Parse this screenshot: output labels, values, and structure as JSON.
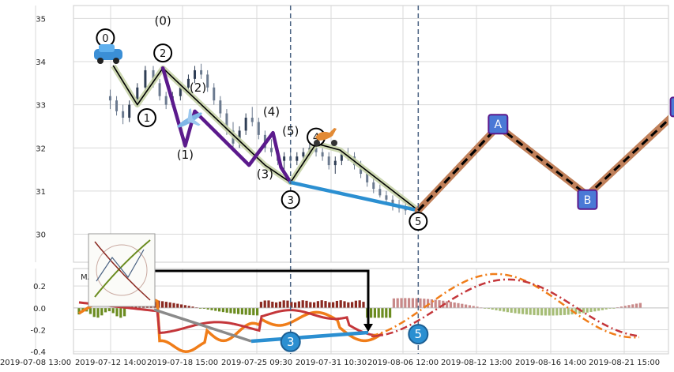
{
  "chart_data": [
    {
      "type": "candlestick",
      "panel": "price",
      "x_ticks": [
        "2019-07-08 13:00",
        "2019-07-12 14:00",
        "2019-07-18 15:00",
        "2019-07-25 09:30",
        "2019-07-31 10:30",
        "2019-08-06 12:00",
        "2019-08-12 13:00",
        "2019-08-16 14:00",
        "2019-08-21 15:00"
      ],
      "y_ticks": [
        30,
        31,
        32,
        33,
        34,
        35
      ],
      "ylim": [
        29.35,
        35.3
      ],
      "x_domain": [
        0,
        100
      ],
      "grid": true,
      "candles": [
        [
          2.3,
          33.2,
          33.35,
          32.9,
          33.1
        ],
        [
          2.7,
          33.1,
          33.2,
          32.75,
          32.85
        ],
        [
          3.1,
          32.85,
          33.0,
          32.55,
          32.7
        ],
        [
          3.5,
          32.7,
          33.1,
          32.6,
          33.0
        ],
        [
          4.0,
          33.0,
          33.5,
          32.95,
          33.4
        ],
        [
          4.5,
          33.4,
          33.9,
          33.3,
          33.8
        ],
        [
          5.0,
          33.8,
          33.9,
          33.4,
          33.5
        ],
        [
          5.4,
          33.5,
          33.6,
          33.1,
          33.2
        ],
        [
          5.8,
          33.2,
          33.3,
          32.9,
          33.0
        ],
        [
          6.2,
          33.0,
          33.3,
          32.95,
          33.2
        ],
        [
          6.7,
          33.2,
          33.5,
          33.1,
          33.4
        ],
        [
          7.2,
          33.4,
          33.7,
          33.3,
          33.6
        ],
        [
          7.6,
          33.6,
          33.9,
          33.5,
          33.8
        ],
        [
          8.0,
          33.8,
          33.95,
          33.6,
          33.7
        ],
        [
          8.4,
          33.7,
          33.8,
          33.3,
          33.4
        ],
        [
          8.8,
          33.4,
          33.5,
          33.0,
          33.1
        ],
        [
          9.2,
          33.1,
          33.2,
          32.7,
          32.8
        ],
        [
          9.6,
          32.8,
          32.9,
          32.3,
          32.4
        ],
        [
          10.0,
          32.4,
          32.6,
          32.0,
          32.1
        ],
        [
          10.4,
          32.1,
          32.5,
          32.0,
          32.4
        ],
        [
          10.8,
          32.4,
          32.8,
          32.3,
          32.7
        ],
        [
          11.2,
          32.7,
          32.95,
          32.5,
          32.6
        ],
        [
          11.6,
          32.6,
          32.7,
          32.2,
          32.3
        ],
        [
          12.0,
          32.3,
          32.4,
          31.9,
          32.0
        ],
        [
          12.4,
          32.0,
          32.2,
          31.8,
          31.9
        ],
        [
          12.8,
          31.9,
          32.0,
          31.6,
          31.7
        ],
        [
          13.2,
          31.7,
          31.9,
          31.5,
          31.8
        ],
        [
          13.6,
          31.8,
          32.0,
          31.6,
          31.7
        ],
        [
          14.0,
          31.7,
          31.9,
          31.6,
          31.8
        ],
        [
          14.4,
          31.8,
          32.0,
          31.7,
          31.9
        ],
        [
          14.8,
          31.9,
          32.1,
          31.8,
          32.0
        ],
        [
          15.2,
          32.0,
          32.1,
          31.8,
          31.9
        ],
        [
          15.6,
          31.9,
          32.0,
          31.7,
          31.8
        ],
        [
          16.0,
          31.8,
          31.9,
          31.5,
          31.6
        ],
        [
          16.4,
          31.6,
          31.8,
          31.4,
          31.7
        ],
        [
          16.8,
          31.7,
          31.9,
          31.6,
          31.85
        ],
        [
          17.2,
          31.85,
          32.0,
          31.7,
          31.8
        ],
        [
          17.6,
          31.8,
          31.9,
          31.5,
          31.6
        ],
        [
          18.0,
          31.6,
          31.7,
          31.3,
          31.4
        ],
        [
          18.4,
          31.4,
          31.5,
          31.1,
          31.2
        ],
        [
          18.8,
          31.2,
          31.3,
          30.95,
          31.05
        ],
        [
          19.2,
          31.05,
          31.15,
          30.85,
          30.9
        ],
        [
          19.6,
          30.9,
          31.0,
          30.7,
          30.8
        ],
        [
          20.0,
          30.8,
          30.9,
          30.55,
          30.65
        ],
        [
          20.4,
          30.65,
          30.8,
          30.5,
          30.6
        ],
        [
          20.8,
          30.6,
          30.75,
          30.45,
          30.55
        ]
      ],
      "volume_note": null
    },
    {
      "type": "line",
      "panel": "price",
      "series": [
        {
          "name": "",
          "role": "zigzag-black",
          "x": [
            2.5,
            4.0,
            5.6,
            12.0,
            13.6,
            15.2,
            16.7,
            21.6
          ],
          "y": [
            33.9,
            33.0,
            33.85,
            31.6,
            31.2,
            32.1,
            31.95,
            30.55
          ],
          "color": "#000000"
        },
        {
          "name": "",
          "role": "zigzag-purple",
          "x": [
            5.6,
            7.0,
            7.6,
            11.0,
            12.5,
            13.0,
            13.6
          ],
          "y": [
            33.85,
            32.05,
            32.85,
            31.6,
            32.35,
            31.55,
            31.2
          ],
          "color": "#5b1a8c"
        },
        {
          "name": "",
          "role": "blue-projection",
          "x": [
            13.6,
            21.6
          ],
          "y": [
            31.2,
            30.55
          ],
          "color": "#2b8fd1"
        },
        {
          "name": "",
          "role": "pink-leg",
          "x": [
            21.6,
            26.6
          ],
          "y": [
            30.55,
            32.5
          ],
          "color": "#f07878"
        },
        {
          "name": "",
          "role": "abc-projection",
          "x": [
            21.6,
            26.6,
            32.2,
            38.0
          ],
          "y": [
            30.55,
            32.5,
            30.9,
            32.9
          ],
          "color": "#c0805a"
        }
      ],
      "labels": [
        {
          "text": "0",
          "x": 2.0,
          "y": 34.55,
          "style": "circle"
        },
        {
          "text": "1",
          "x": 4.6,
          "y": 32.7,
          "style": "circle"
        },
        {
          "text": "2",
          "x": 5.6,
          "y": 34.2,
          "style": "circle"
        },
        {
          "text": "3",
          "x": 13.6,
          "y": 30.8,
          "style": "circle"
        },
        {
          "text": "4",
          "x": 15.2,
          "y": 32.25,
          "style": "circle"
        },
        {
          "text": "5",
          "x": 21.6,
          "y": 30.3,
          "style": "circle"
        },
        {
          "text": "(0)",
          "x": 5.6,
          "y": 34.85,
          "style": "plain"
        },
        {
          "text": "(1)",
          "x": 7.0,
          "y": 31.75,
          "style": "plain"
        },
        {
          "text": "(2)",
          "x": 7.8,
          "y": 33.3,
          "style": "plain"
        },
        {
          "text": "(3)",
          "x": 12.0,
          "y": 31.3,
          "style": "plain"
        },
        {
          "text": "(4)",
          "x": 12.4,
          "y": 32.75,
          "style": "plain"
        },
        {
          "text": "(5)",
          "x": 13.6,
          "y": 32.3,
          "style": "plain"
        },
        {
          "text": "A",
          "x": 26.6,
          "y": 32.55,
          "style": "box"
        },
        {
          "text": "B",
          "x": 32.2,
          "y": 30.8,
          "style": "box"
        },
        {
          "text": "C",
          "x": 38.0,
          "y": 32.95,
          "style": "box"
        }
      ],
      "vlines": [
        13.6,
        21.6
      ],
      "icons": [
        "car-icon",
        "airplane-icon",
        "scooter-icon"
      ]
    },
    {
      "type": "bar",
      "panel": "macd",
      "title": "MACD (12,26,9)",
      "y_ticks": [
        -0.4,
        -0.2,
        0.0,
        0.2
      ],
      "ylim": [
        -0.42,
        0.36
      ],
      "series": [
        {
          "name": "",
          "role": "macd-line",
          "color": "#f07d19"
        },
        {
          "name": "",
          "role": "signal-line",
          "color": "#c4363a"
        },
        {
          "name": "",
          "role": "histogram-positive",
          "color": "#8b2a22"
        },
        {
          "name": "",
          "role": "histogram-negative",
          "color": "#6b8c20"
        }
      ],
      "markers": [
        {
          "text": "3",
          "x": 13.6,
          "y": -0.31
        },
        {
          "text": "5",
          "x": 21.6,
          "y": -0.24
        }
      ],
      "inset_label": "thumbnail-icon"
    }
  ]
}
